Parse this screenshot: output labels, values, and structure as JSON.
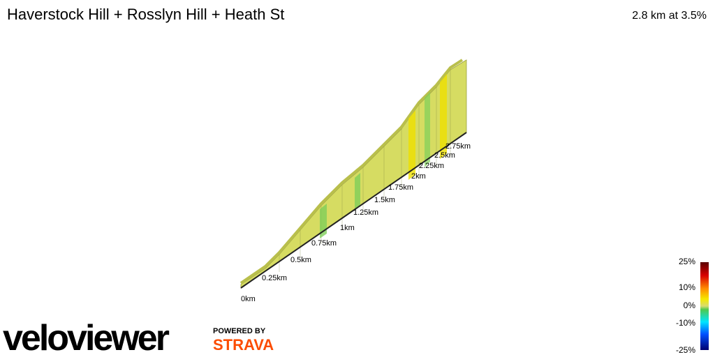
{
  "header": {
    "title": "Haverstock Hill + Rosslyn Hill + Heath St",
    "summary": "2.8 km at 3.5%"
  },
  "distance_labels": [
    "0km",
    "0.25km",
    "0.5km",
    "0.75km",
    "1km",
    "1.25km",
    "1.5km",
    "1.75km",
    "2km",
    "2.25km",
    "2.5km",
    "2.75km"
  ],
  "legend": {
    "labels": [
      "25%",
      "10%",
      "0%",
      "-10%",
      "-25%"
    ]
  },
  "branding": {
    "logo": "veloviewer",
    "powered_by": "POWERED BY",
    "partner": "STRAVA"
  }
}
